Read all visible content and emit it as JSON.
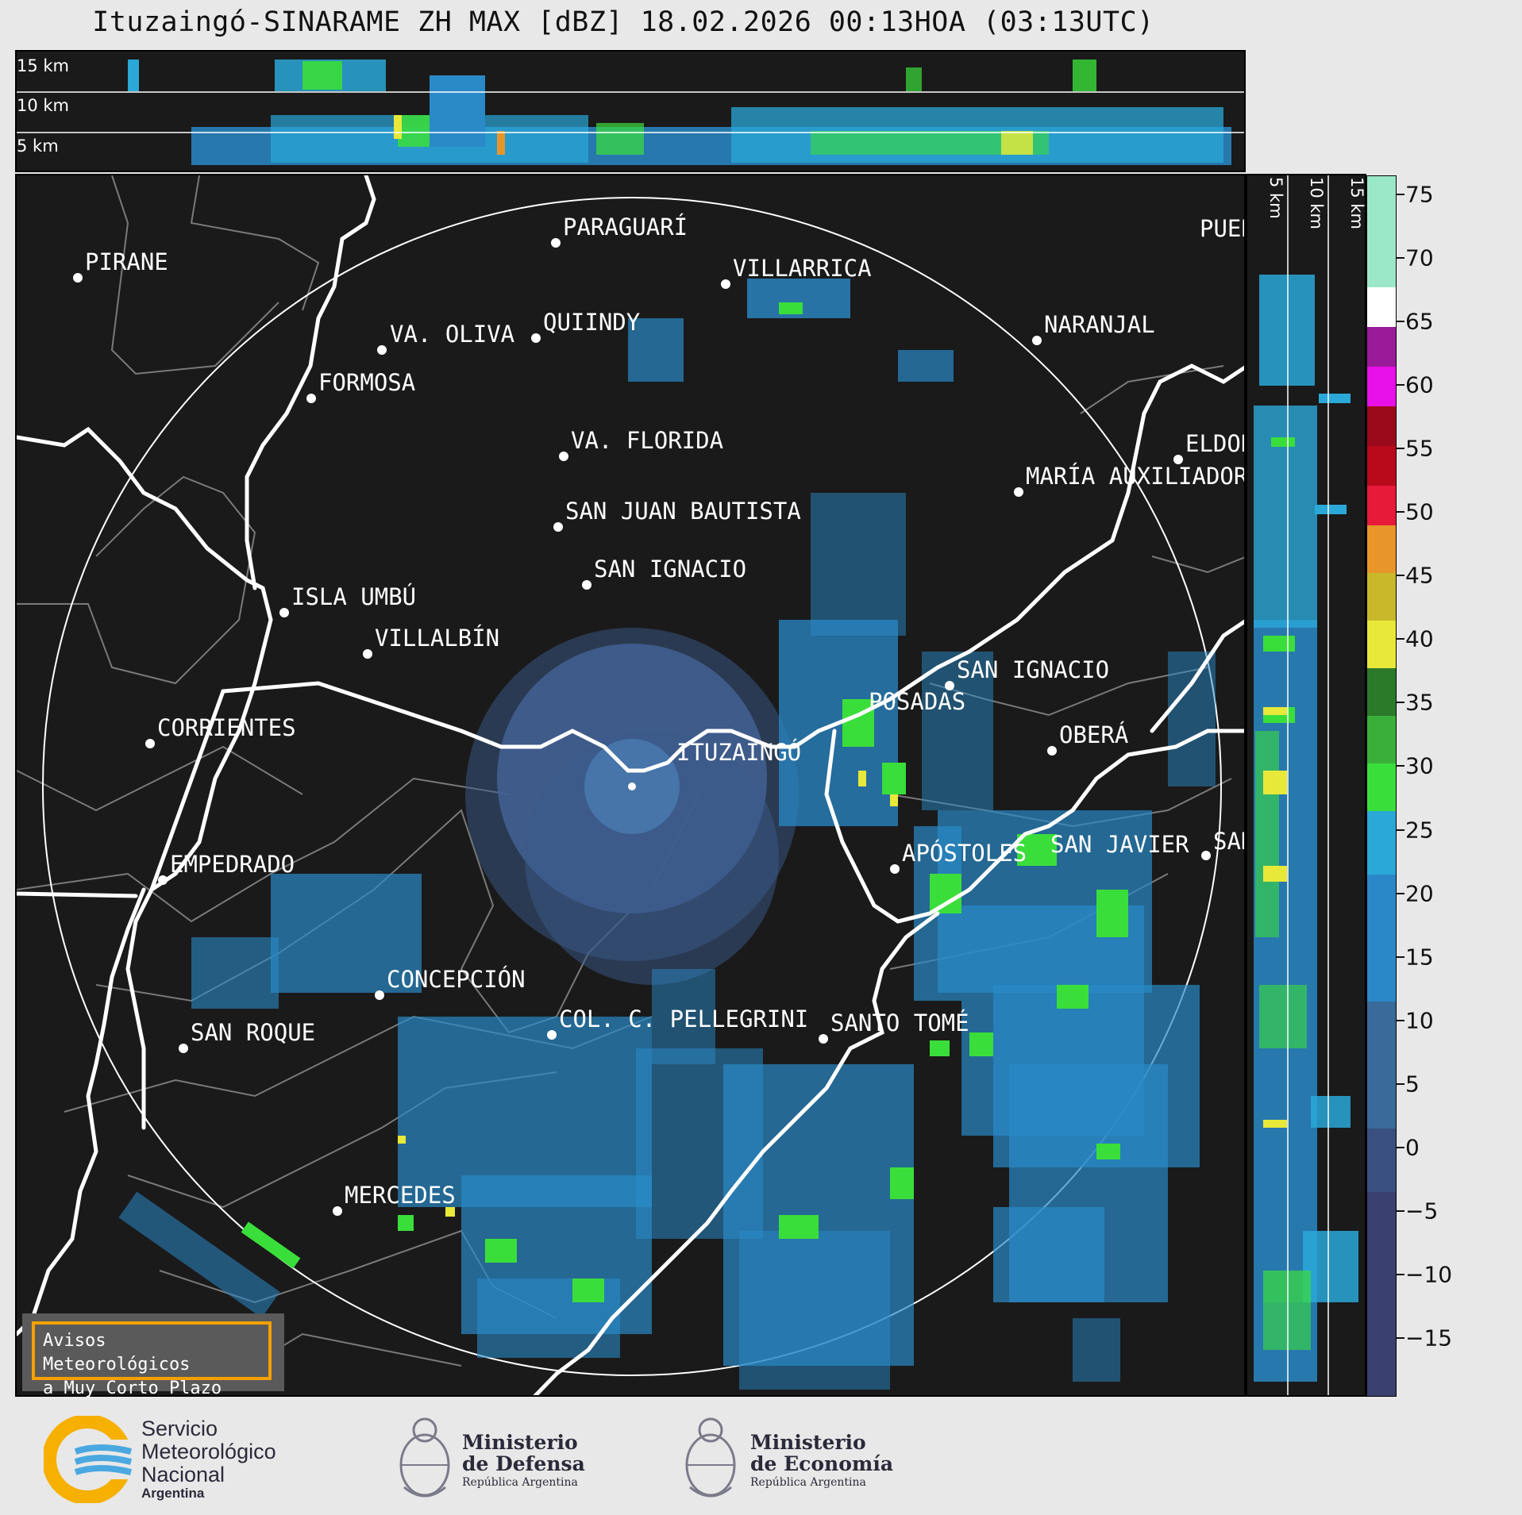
{
  "title": "Ituzaingó-SINARAME ZH MAX [dBZ] 18.02.2026 00:13HOA (03:13UTC)",
  "top_panel": {
    "altitude_labels": [
      "15 km",
      "10 km",
      "5 km"
    ]
  },
  "side_panel": {
    "altitude_labels": [
      "5 km",
      "10 km",
      "15 km"
    ]
  },
  "colorbar": {
    "unit": "dBZ",
    "ticks": [
      "75",
      "70",
      "65",
      "60",
      "55",
      "50",
      "45",
      "40",
      "35",
      "30",
      "25",
      "20",
      "15",
      "10",
      "5",
      "0",
      "−5",
      "−10",
      "−15"
    ],
    "min": -19.5,
    "max": 76.5,
    "colors": {
      "low": "#3a3a6a",
      "blue": "#2a8ac8",
      "cyan": "#2aa8d8",
      "green": "#3ade3a",
      "dark_green": "#2a7a2a",
      "yellow": "#e8e83a",
      "orange": "#e8962a",
      "red": "#d8102a",
      "dark_red": "#9a0a1a",
      "magenta": "#e810e8",
      "purple": "#9a1a9a",
      "white": "#ffffff",
      "mint": "#8ae8c8"
    }
  },
  "cities": [
    {
      "name": "PIRANE"
    },
    {
      "name": "PARAGUARÍ"
    },
    {
      "name": "VILLARRICA"
    },
    {
      "name": "QUIINDY"
    },
    {
      "name": "VA. OLIVA"
    },
    {
      "name": "NARANJAL"
    },
    {
      "name": "FORMOSA"
    },
    {
      "name": "PUER"
    },
    {
      "name": "VA. FLORIDA"
    },
    {
      "name": "ELDOR"
    },
    {
      "name": "MARÍA AUXILIADOR"
    },
    {
      "name": "SAN JUAN BAUTISTA"
    },
    {
      "name": "SAN IGNACIO"
    },
    {
      "name": "ISLA UMBÚ"
    },
    {
      "name": "VILLALBÍN"
    },
    {
      "name": "SAN IGNACIO"
    },
    {
      "name": "POSADAS"
    },
    {
      "name": "CORRIENTES"
    },
    {
      "name": "ITUZAINGÓ"
    },
    {
      "name": "OBERÁ"
    },
    {
      "name": "APÓSTOLES"
    },
    {
      "name": "SAN JAVIER"
    },
    {
      "name": "SAN"
    },
    {
      "name": "EMPEDRADO"
    },
    {
      "name": "CONCEPCIÓN"
    },
    {
      "name": "COL. C. PELLEGRINI"
    },
    {
      "name": "SANTO TOMÉ"
    },
    {
      "name": "SAN ROQUE"
    },
    {
      "name": "MERCEDES"
    }
  ],
  "avisos": {
    "line1": "Avisos Meteorológicos",
    "line2": "a Muy Corto Plazo"
  },
  "logos": {
    "smn": {
      "line1": "Servicio",
      "line2": "Meteorológico",
      "line3": "Nacional",
      "line4": "Argentina"
    },
    "defensa": {
      "line1": "Ministerio",
      "line2": "de Defensa",
      "line3": "República Argentina"
    },
    "economia": {
      "line1": "Ministerio",
      "line2": "de Economía",
      "line3": "República Argentina"
    }
  }
}
